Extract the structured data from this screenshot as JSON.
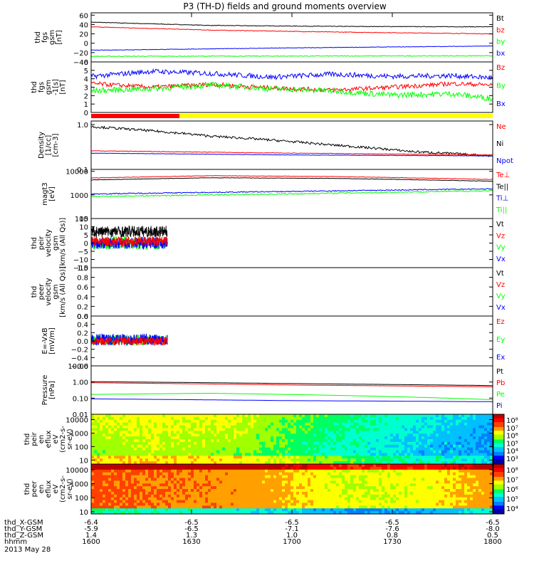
{
  "title": "P3 (TH-D) fields and ground moments overview",
  "footer": {
    "rows": [
      {
        "label": "thd_X-GSM",
        "values": [
          "-6.4",
          "-6.5",
          "-6.5",
          "-6.5",
          "-6.5"
        ]
      },
      {
        "label": "thd_Y-GSM",
        "values": [
          "-5.9",
          "-6.5",
          "-7.1",
          "-7.6",
          "-8.0"
        ]
      },
      {
        "label": "thd_Z-GSM",
        "values": [
          "1.4",
          "1.3",
          "1.0",
          "0.8",
          "0.5"
        ]
      },
      {
        "label": "hhmm",
        "values": [
          "1600",
          "1630",
          "1700",
          "1730",
          "1800"
        ]
      }
    ],
    "date": "2013 May 28"
  },
  "colors": {
    "black": "#000000",
    "red": "#ff0000",
    "green": "#00ff00",
    "blue": "#0000ff",
    "yellow": "#ffff00"
  },
  "chart_data": [
    {
      "type": "line",
      "ylabel": [
        "thd",
        "fgs",
        "gsm",
        "[nT]"
      ],
      "ylim": [
        -40,
        65
      ],
      "yticks": [
        "60",
        "40",
        "20",
        "0",
        "−20",
        "−40"
      ],
      "legend": [
        {
          "name": "Bt",
          "color": "#000000"
        },
        {
          "name": "bz",
          "color": "#ff0000"
        },
        {
          "name": "by",
          "color": "#00ff00"
        },
        {
          "name": "bx",
          "color": "#0000ff"
        }
      ],
      "series": [
        {
          "name": "Bt",
          "color": "#000000",
          "points": [
            [
              0,
              45
            ],
            [
              0.3,
              38
            ],
            [
              0.6,
              36
            ],
            [
              1,
              35
            ]
          ],
          "noise": 0.6
        },
        {
          "name": "bz",
          "color": "#ff0000",
          "points": [
            [
              0,
              35
            ],
            [
              0.3,
              28
            ],
            [
              0.6,
              24
            ],
            [
              1,
              20
            ]
          ],
          "noise": 0.6
        },
        {
          "name": "by",
          "color": "#00ff00",
          "points": [
            [
              0,
              -28
            ],
            [
              1,
              -27
            ]
          ],
          "noise": 0.8
        },
        {
          "name": "bx",
          "color": "#0000ff",
          "points": [
            [
              0,
              -15
            ],
            [
              0.5,
              -10
            ],
            [
              1,
              -6
            ]
          ],
          "noise": 0.5
        }
      ]
    },
    {
      "type": "line",
      "ylabel": [
        "thd",
        "fgs",
        "gsm",
        "-1[s]",
        "[nT]"
      ],
      "ylim": [
        0,
        7
      ],
      "yticks": [
        "6",
        "5",
        "4",
        "3",
        "2",
        "1",
        "0"
      ],
      "legend": [
        {
          "name": "Bz",
          "color": "#ff0000"
        },
        {
          "name": "By",
          "color": "#00ff00"
        },
        {
          "name": "Bx",
          "color": "#0000ff"
        }
      ],
      "series": [
        {
          "name": "Bx",
          "color": "#0000ff",
          "points": [
            [
              0,
              5.0
            ],
            [
              0.15,
              5.7
            ],
            [
              0.3,
              5.4
            ],
            [
              0.45,
              4.9
            ],
            [
              0.6,
              5.3
            ],
            [
              0.75,
              5.0
            ],
            [
              0.9,
              5.1
            ],
            [
              1,
              4.8
            ]
          ],
          "noise": 0.35
        },
        {
          "name": "Bz",
          "color": "#ff0000",
          "points": [
            [
              0,
              4.0
            ],
            [
              0.15,
              3.5
            ],
            [
              0.3,
              3.9
            ],
            [
              0.45,
              3.4
            ],
            [
              0.6,
              3.1
            ],
            [
              0.75,
              3.5
            ],
            [
              0.9,
              4.0
            ],
            [
              1,
              3.8
            ]
          ],
          "noise": 0.3
        },
        {
          "name": "By",
          "color": "#00ff00",
          "points": [
            [
              0,
              3.0
            ],
            [
              0.15,
              3.3
            ],
            [
              0.3,
              3.8
            ],
            [
              0.45,
              3.3
            ],
            [
              0.6,
              3.0
            ],
            [
              0.75,
              2.4
            ],
            [
              0.9,
              2.6
            ],
            [
              1,
              1.9
            ]
          ],
          "noise": 0.4
        }
      ],
      "status_bar": [
        {
          "from": 0,
          "to": 0.22,
          "color": "#ff0000"
        },
        {
          "from": 0.22,
          "to": 1,
          "color": "#ffff00"
        }
      ]
    },
    {
      "type": "line",
      "log": true,
      "ylabel": [
        "Density",
        "[1/cc]",
        "[cm-3]"
      ],
      "ylim": [
        0.1,
        1.2
      ],
      "yticks": [
        "1.0",
        "0.1"
      ],
      "legend": [
        {
          "name": "Ne",
          "color": "#ff0000"
        },
        {
          "name": "Ni",
          "color": "#000000"
        },
        {
          "name": "Npot",
          "color": "#0000ff"
        }
      ],
      "series": [
        {
          "name": "Ni",
          "color": "#000000",
          "points": [
            [
              0,
              0.9
            ],
            [
              0.3,
              0.55
            ],
            [
              0.6,
              0.35
            ],
            [
              0.8,
              0.25
            ],
            [
              1,
              0.2
            ]
          ],
          "noise": 0.06
        },
        {
          "name": "Ne",
          "color": "#ff0000",
          "points": [
            [
              0,
              0.26
            ],
            [
              0.5,
              0.23
            ],
            [
              1,
              0.21
            ]
          ],
          "noise": 0.015
        },
        {
          "name": "Npot",
          "color": "#0000ff",
          "points": [
            [
              0,
              0.23
            ],
            [
              0.5,
              0.21
            ],
            [
              1,
              0.2
            ]
          ],
          "noise": 0.01
        }
      ]
    },
    {
      "type": "line",
      "log": true,
      "ylabel": [
        "magt3",
        "[eV]"
      ],
      "ylim": [
        100,
        12000
      ],
      "yticks": [
        "10000",
        "1000",
        "100"
      ],
      "legend": [
        {
          "name": "Te⊥",
          "color": "#ff0000"
        },
        {
          "name": "Te||",
          "color": "#000000"
        },
        {
          "name": "Ti⊥",
          "color": "#0000ff"
        },
        {
          "name": "Ti||",
          "color": "#00ff00"
        }
      ],
      "series": [
        {
          "name": "Te⊥",
          "color": "#ff0000",
          "points": [
            [
              0,
              5200
            ],
            [
              0.3,
              6500
            ],
            [
              0.6,
              6000
            ],
            [
              1,
              4500
            ]
          ],
          "noise": 0.02
        },
        {
          "name": "Te||",
          "color": "#000000",
          "points": [
            [
              0,
              4300
            ],
            [
              0.3,
              5300
            ],
            [
              0.6,
              5000
            ],
            [
              1,
              3800
            ]
          ],
          "noise": 0.02
        },
        {
          "name": "Ti⊥",
          "color": "#0000ff",
          "points": [
            [
              0,
              1100
            ],
            [
              0.5,
              1400
            ],
            [
              1,
              1800
            ]
          ],
          "noise": 0.05
        },
        {
          "name": "Ti||",
          "color": "#00ff00",
          "points": [
            [
              0,
              850
            ],
            [
              0.5,
              1100
            ],
            [
              1,
              1500
            ]
          ],
          "noise": 0.06
        }
      ]
    },
    {
      "type": "line",
      "ylabel": [
        "thd",
        "peir",
        "velocity",
        "gsm",
        "[km/s (All Qs)]"
      ],
      "ylim": [
        -15,
        15
      ],
      "yticks": [
        "15",
        "10",
        "5",
        "0",
        "−5",
        "−10",
        "−15"
      ],
      "legend": [
        {
          "name": "Vt",
          "color": "#000000"
        },
        {
          "name": "Vz",
          "color": "#ff0000"
        },
        {
          "name": "Vy",
          "color": "#00ff00"
        },
        {
          "name": "Vx",
          "color": "#0000ff"
        }
      ],
      "xmax": 0.19,
      "series": [
        {
          "name": "Vt",
          "color": "#000000",
          "points": [
            [
              0,
              7
            ],
            [
              0.19,
              7
            ]
          ],
          "noise": 3.5
        },
        {
          "name": "Vy",
          "color": "#00ff00",
          "points": [
            [
              0,
              0
            ],
            [
              0.19,
              0
            ]
          ],
          "noise": 4
        },
        {
          "name": "Vx",
          "color": "#0000ff",
          "points": [
            [
              0,
              0
            ],
            [
              0.19,
              0
            ]
          ],
          "noise": 3.5
        },
        {
          "name": "Vz",
          "color": "#ff0000",
          "points": [
            [
              0,
              1
            ],
            [
              0.19,
              1
            ]
          ],
          "noise": 3
        }
      ]
    },
    {
      "type": "line",
      "ylabel": [
        "thd",
        "peer",
        "velocity",
        "gsm",
        "[km/s (All Qs)]"
      ],
      "ylim": [
        0,
        1
      ],
      "yticks": [
        "1.0",
        "0.8",
        "0.6",
        "0.4",
        "0.2",
        "0.0"
      ],
      "legend": [
        {
          "name": "Vt",
          "color": "#000000"
        },
        {
          "name": "Vz",
          "color": "#ff0000"
        },
        {
          "name": "Vy",
          "color": "#00ff00"
        },
        {
          "name": "Vx",
          "color": "#0000ff"
        }
      ],
      "series": []
    },
    {
      "type": "line",
      "ylabel": [
        "E=-VxB",
        "[mV/m]"
      ],
      "ylim": [
        -0.6,
        0.6
      ],
      "yticks": [
        "0.6",
        "0.4",
        "0.2",
        "0.0",
        "−0.2",
        "−0.4",
        "−0.6"
      ],
      "legend": [
        {
          "name": "Ez",
          "color": "#ff0000"
        },
        {
          "name": "Ey",
          "color": "#00ff00"
        },
        {
          "name": "Ex",
          "color": "#0000ff"
        }
      ],
      "xmax": 0.19,
      "series": [
        {
          "name": "Ey",
          "color": "#00ff00",
          "points": [
            [
              0,
              0.02
            ],
            [
              0.19,
              0.02
            ]
          ],
          "noise": 0.13
        },
        {
          "name": "Ex",
          "color": "#0000ff",
          "points": [
            [
              0,
              0.03
            ],
            [
              0.19,
              0.03
            ]
          ],
          "noise": 0.14
        },
        {
          "name": "Ez",
          "color": "#ff0000",
          "points": [
            [
              0,
              0.0
            ],
            [
              0.19,
              0.0
            ]
          ],
          "noise": 0.1
        }
      ]
    },
    {
      "type": "line",
      "log": true,
      "ylabel": [
        "Pressure",
        "[nPa]"
      ],
      "ylim": [
        0.01,
        10
      ],
      "yticks": [
        "10.00",
        "1.00",
        "0.10",
        "0.01"
      ],
      "legend": [
        {
          "name": "Pt",
          "color": "#000000"
        },
        {
          "name": "Pb",
          "color": "#ff0000"
        },
        {
          "name": "Pe",
          "color": "#00ff00"
        },
        {
          "name": "Pi",
          "color": "#0000ff"
        }
      ],
      "series": [
        {
          "name": "Pt",
          "color": "#000000",
          "points": [
            [
              0,
              1.05
            ],
            [
              0.5,
              0.8
            ],
            [
              1,
              0.6
            ]
          ],
          "noise": 0.005
        },
        {
          "name": "Pb",
          "color": "#ff0000",
          "points": [
            [
              0,
              0.9
            ],
            [
              0.5,
              0.65
            ],
            [
              1,
              0.5
            ]
          ],
          "noise": 0.005
        },
        {
          "name": "Pe",
          "color": "#00ff00",
          "points": [
            [
              0,
              0.17
            ],
            [
              0.3,
              0.2
            ],
            [
              0.6,
              0.15
            ],
            [
              1,
              0.08
            ]
          ],
          "noise": 0.004
        },
        {
          "name": "Pi",
          "color": "#0000ff",
          "points": [
            [
              0,
              0.09
            ],
            [
              0.5,
              0.07
            ],
            [
              1,
              0.06
            ]
          ],
          "noise": 0.003
        }
      ]
    },
    {
      "type": "heatmap",
      "log": true,
      "ylabel": [
        "thd",
        "peir",
        "en",
        "eflux",
        "eV",
        "(cm2-s-",
        "sr-eV)"
      ],
      "ylim": [
        5,
        25000
      ],
      "yticks": [
        "10000",
        "1000",
        "100",
        "10"
      ],
      "colorbar_ticks": [
        "10⁸",
        "10⁷",
        "10⁶",
        "10⁵",
        "10⁴",
        "10³"
      ],
      "palette": [
        "#0000a0",
        "#0000ff",
        "#0080ff",
        "#00c0ff",
        "#00ffd0",
        "#00ff60",
        "#a0ff00",
        "#ffff00",
        "#ffa000",
        "#ff4000",
        "#ff0000",
        "#c00000"
      ],
      "profile": [
        [
          0,
          0.55
        ],
        [
          0.15,
          0.58
        ],
        [
          0.35,
          0.56
        ],
        [
          0.55,
          0.45
        ],
        [
          0.75,
          0.35
        ],
        [
          1,
          0.25
        ]
      ],
      "trend": -0.08
    },
    {
      "type": "heatmap",
      "log": true,
      "ylabel": [
        "thd",
        "peer",
        "en",
        "eflux",
        "eV",
        "(cm2-s-",
        "sr-eV)"
      ],
      "ylim": [
        7,
        25000
      ],
      "yticks": [
        "10000",
        "1000",
        "100",
        "10"
      ],
      "colorbar_ticks": [
        "10⁸",
        "10⁷",
        "10⁶",
        "10⁵",
        "10⁴"
      ],
      "palette": [
        "#0000a0",
        "#0000ff",
        "#0080ff",
        "#00c0ff",
        "#00ffd0",
        "#00ff60",
        "#a0ff00",
        "#ffff00",
        "#ffa000",
        "#ff4000",
        "#ff0000",
        "#c00000"
      ],
      "profile": [
        [
          0,
          0.78
        ],
        [
          0.2,
          0.74
        ],
        [
          0.45,
          0.7
        ],
        [
          0.65,
          0.58
        ],
        [
          0.85,
          0.62
        ],
        [
          1,
          0.72
        ]
      ],
      "trend": 0.0
    }
  ]
}
